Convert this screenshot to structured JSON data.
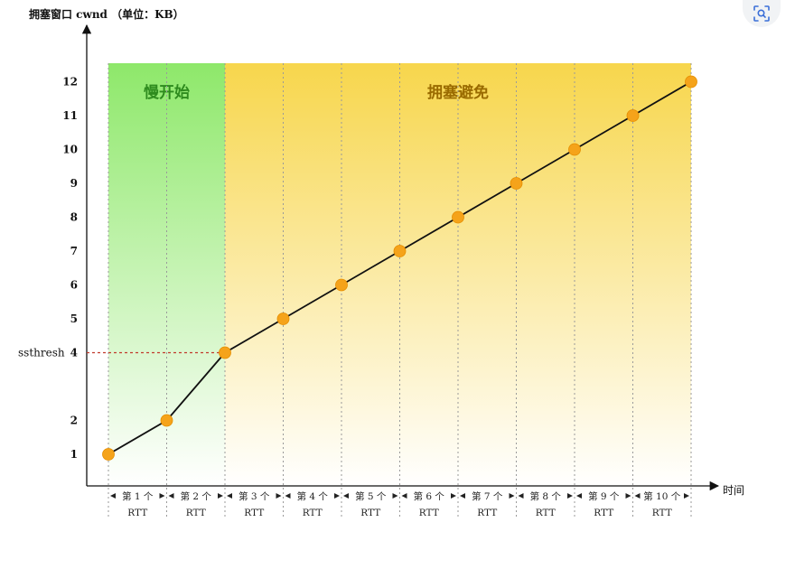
{
  "chart_data": {
    "type": "line",
    "ylabel": "拥塞窗口 cwnd （单位：KB）",
    "xlabel": "时间",
    "y_ticks": [
      1,
      2,
      4,
      5,
      6,
      7,
      8,
      9,
      10,
      11,
      12
    ],
    "ylim": [
      0,
      13
    ],
    "x": [
      0,
      1,
      2,
      3,
      4,
      5,
      6,
      7,
      8,
      9,
      10
    ],
    "values": [
      1,
      2,
      4,
      5,
      6,
      7,
      8,
      9,
      10,
      11,
      12
    ],
    "rtt_labels": [
      [
        "第 1 个",
        "RTT"
      ],
      [
        "第 2 个",
        "RTT"
      ],
      [
        "第 3 个",
        "RTT"
      ],
      [
        "第 4 个",
        "RTT"
      ],
      [
        "第 5 个",
        "RTT"
      ],
      [
        "第 6 个",
        "RTT"
      ],
      [
        "第 7 个",
        "RTT"
      ],
      [
        "第 8 个",
        "RTT"
      ],
      [
        "第 9 个",
        "RTT"
      ],
      [
        "第 10 个",
        "RTT"
      ]
    ],
    "threshold": {
      "label": "ssthresh",
      "value": 4,
      "color": "#c0392b"
    },
    "regions": [
      {
        "label": "慢开始",
        "from": 0,
        "to": 2,
        "color": "#7ed957",
        "text_color": "#2e8b1e"
      },
      {
        "label": "拥塞避免",
        "from": 2,
        "to": 10,
        "color": "#f5d547",
        "text_color": "#9a6b00"
      }
    ],
    "line_color": "#111111",
    "marker_color": "#f5a31a",
    "grid": false
  },
  "toolbar": {
    "icon": "focus-scan-icon"
  }
}
